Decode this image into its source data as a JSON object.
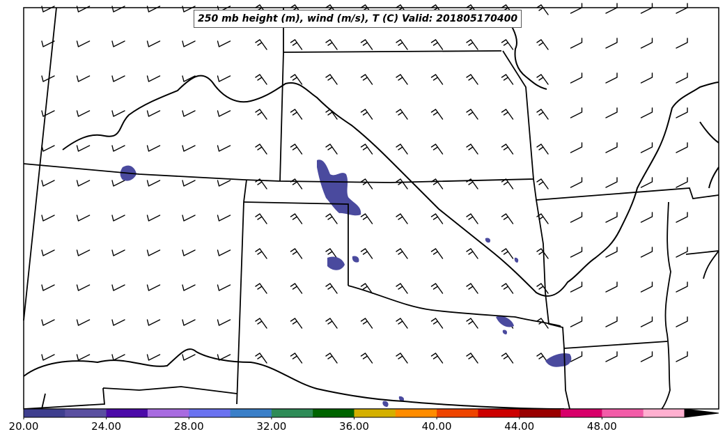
{
  "title": "250 mb height (m), wind (m/s), T (C) Valid: 201805170400",
  "colorbar": {
    "tick_labels": [
      "20.00",
      "24.00",
      "28.00",
      "32.00",
      "36.00",
      "40.00",
      "44.00",
      "48.00"
    ],
    "tick_values": [
      20,
      24,
      28,
      32,
      36,
      40,
      44,
      48
    ],
    "range": [
      20,
      52
    ],
    "step": 2,
    "extend": "max",
    "colors": [
      "#3f3f8f",
      "#5a4fa0",
      "#4b0aa8",
      "#a86be0",
      "#6a72f0",
      "#3a7fc8",
      "#2e8b57",
      "#006400",
      "#d4b000",
      "#ff8c00",
      "#ee4400",
      "#cc0000",
      "#990000",
      "#d8006a",
      "#f25ca8",
      "#ffb0d0"
    ]
  },
  "shading_color": "#4a4a9e",
  "chart_data": {
    "type": "map",
    "title": "250 mb height (m), wind (m/s), T (C) Valid: 201805170400",
    "shaded_field": "wind speed (m/s), shaded from 20",
    "legend_placement": "bottom"
  }
}
